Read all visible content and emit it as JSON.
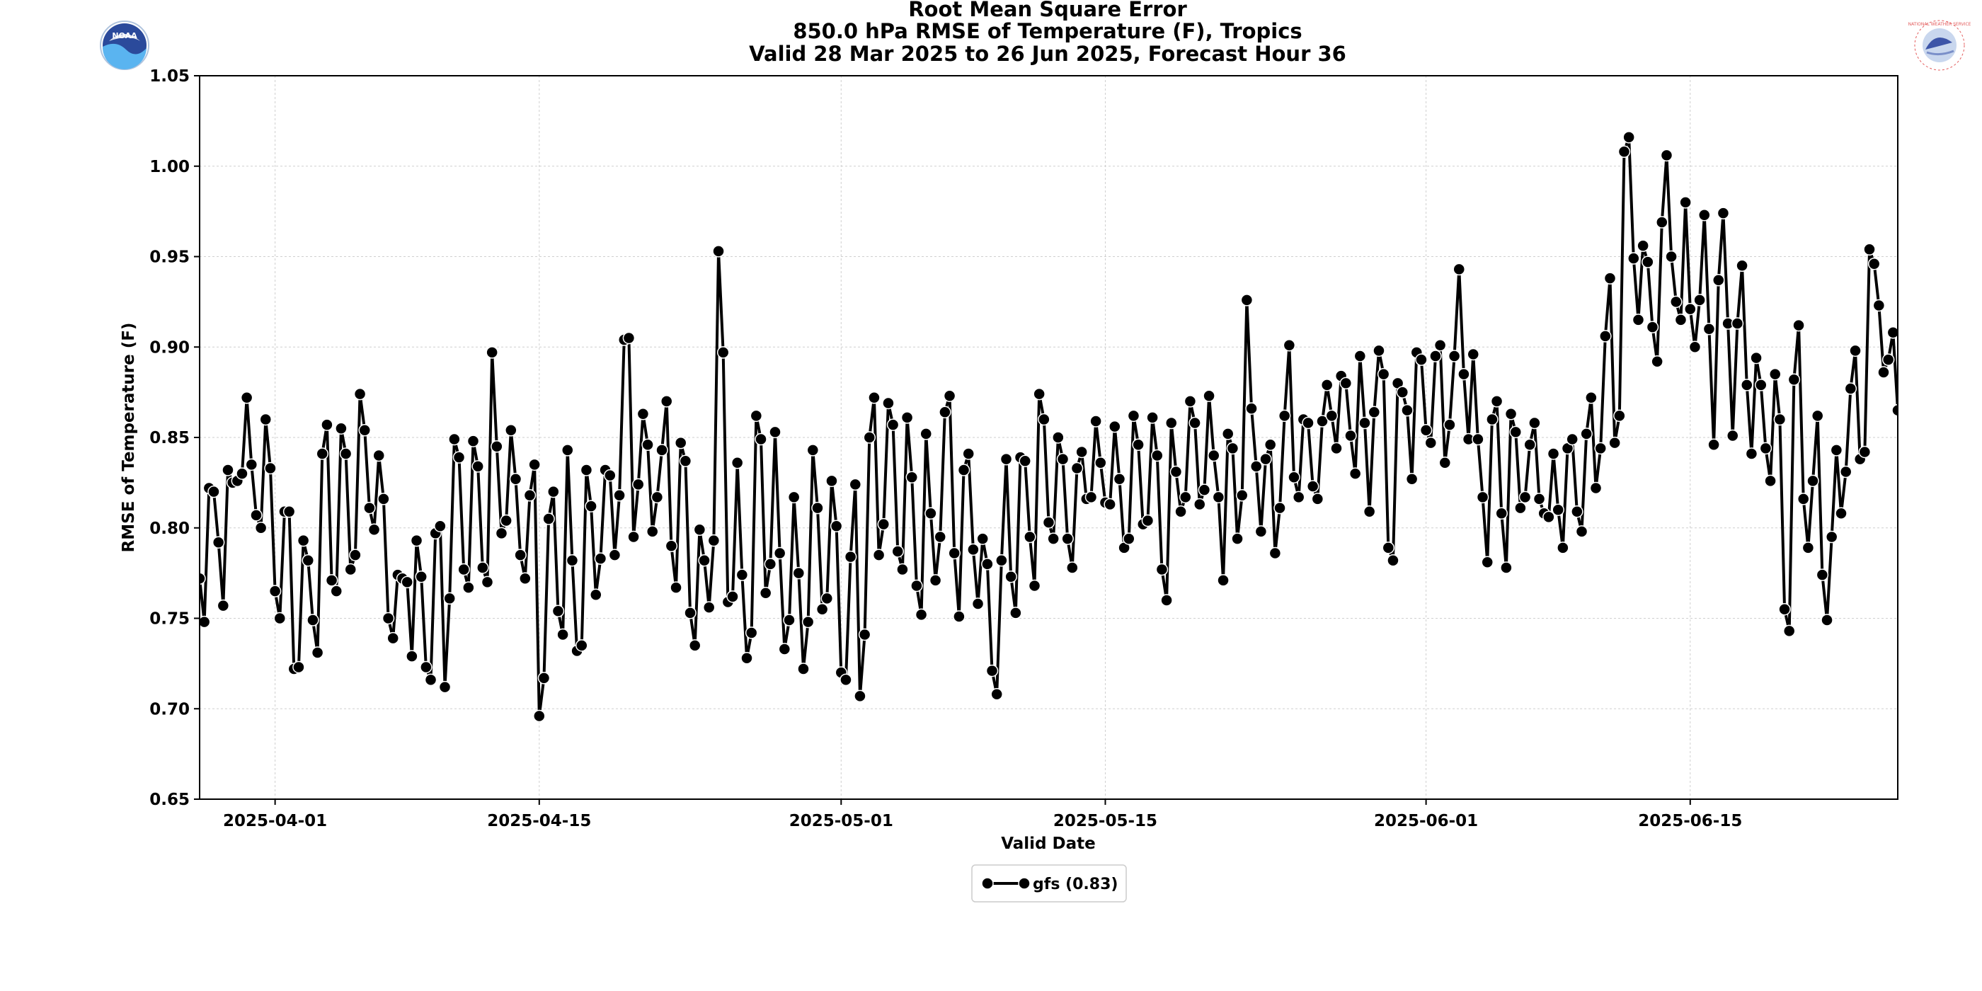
{
  "chart_data": {
    "type": "line",
    "title": [
      "Root Mean Square Error",
      "850.0 hPa RMSE of Temperature (F), Tropics",
      "Valid 28 Mar 2025 to 26 Jun 2025, Forecast Hour 36"
    ],
    "xlabel": "Valid Date",
    "ylabel": "RMSE of Temperature (F)",
    "xlim": [
      "2025-03-28T00:00",
      "2025-06-26T00:00"
    ],
    "ylim": [
      0.65,
      1.05
    ],
    "yticks": [
      "0.65",
      "0.70",
      "0.75",
      "0.80",
      "0.85",
      "0.90",
      "0.95",
      "1.00",
      "1.05"
    ],
    "xticks": [
      "2025-04-01",
      "2025-04-15",
      "2025-05-01",
      "2025-05-15",
      "2025-06-01",
      "2025-06-15"
    ],
    "grid": true,
    "legend_position": "bottom-center",
    "interval_hours": 6,
    "series": [
      {
        "name": "gfs (0.83)",
        "color": "#000000",
        "start": "2025-03-28T00:00",
        "values": [
          0.772,
          0.748,
          0.822,
          0.82,
          0.792,
          0.757,
          0.832,
          0.825,
          0.826,
          0.83,
          0.872,
          0.835,
          0.807,
          0.8,
          0.86,
          0.833,
          0.765,
          0.75,
          0.809,
          0.809,
          0.722,
          0.723,
          0.793,
          0.782,
          0.749,
          0.731,
          0.841,
          0.857,
          0.771,
          0.765,
          0.855,
          0.841,
          0.777,
          0.785,
          0.874,
          0.854,
          0.811,
          0.799,
          0.84,
          0.816,
          0.75,
          0.739,
          0.774,
          0.772,
          0.77,
          0.729,
          0.793,
          0.773,
          0.723,
          0.716,
          0.797,
          0.801,
          0.712,
          0.761,
          0.849,
          0.839,
          0.777,
          0.767,
          0.848,
          0.834,
          0.778,
          0.77,
          0.897,
          0.845,
          0.797,
          0.804,
          0.854,
          0.827,
          0.785,
          0.772,
          0.818,
          0.835,
          0.696,
          0.717,
          0.805,
          0.82,
          0.754,
          0.741,
          0.843,
          0.782,
          0.732,
          0.735,
          0.832,
          0.812,
          0.763,
          0.783,
          0.832,
          0.829,
          0.785,
          0.818,
          0.904,
          0.905,
          0.795,
          0.824,
          0.863,
          0.846,
          0.798,
          0.817,
          0.843,
          0.87,
          0.79,
          0.767,
          0.847,
          0.837,
          0.753,
          0.735,
          0.799,
          0.782,
          0.756,
          0.793,
          0.953,
          0.897,
          0.759,
          0.762,
          0.836,
          0.774,
          0.728,
          0.742,
          0.862,
          0.849,
          0.764,
          0.78,
          0.853,
          0.786,
          0.733,
          0.749,
          0.817,
          0.775,
          0.722,
          0.748,
          0.843,
          0.811,
          0.755,
          0.761,
          0.826,
          0.801,
          0.72,
          0.716,
          0.784,
          0.824,
          0.707,
          0.741,
          0.85,
          0.872,
          0.785,
          0.802,
          0.869,
          0.857,
          0.787,
          0.777,
          0.861,
          0.828,
          0.768,
          0.752,
          0.852,
          0.808,
          0.771,
          0.795,
          0.864,
          0.873,
          0.786,
          0.751,
          0.832,
          0.841,
          0.788,
          0.758,
          0.794,
          0.78,
          0.721,
          0.708,
          0.782,
          0.838,
          0.773,
          0.753,
          0.839,
          0.837,
          0.795,
          0.768,
          0.874,
          0.86,
          0.803,
          0.794,
          0.85,
          0.838,
          0.794,
          0.778,
          0.833,
          0.842,
          0.816,
          0.817,
          0.859,
          0.836,
          0.814,
          0.813,
          0.856,
          0.827,
          0.789,
          0.794,
          0.862,
          0.846,
          0.802,
          0.804,
          0.861,
          0.84,
          0.777,
          0.76,
          0.858,
          0.831,
          0.809,
          0.817,
          0.87,
          0.858,
          0.813,
          0.821,
          0.873,
          0.84,
          0.817,
          0.771,
          0.852,
          0.844,
          0.794,
          0.818,
          0.926,
          0.866,
          0.834,
          0.798,
          0.838,
          0.846,
          0.786,
          0.811,
          0.862,
          0.901,
          0.828,
          0.817,
          0.86,
          0.858,
          0.823,
          0.816,
          0.859,
          0.879,
          0.862,
          0.844,
          0.884,
          0.88,
          0.851,
          0.83,
          0.895,
          0.858,
          0.809,
          0.864,
          0.898,
          0.885,
          0.789,
          0.782,
          0.88,
          0.875,
          0.865,
          0.827,
          0.897,
          0.893,
          0.854,
          0.847,
          0.895,
          0.901,
          0.836,
          0.857,
          0.895,
          0.943,
          0.885,
          0.849,
          0.896,
          0.849,
          0.817,
          0.781,
          0.86,
          0.87,
          0.808,
          0.778,
          0.863,
          0.853,
          0.811,
          0.817,
          0.846,
          0.858,
          0.816,
          0.808,
          0.806,
          0.841,
          0.81,
          0.789,
          0.844,
          0.849,
          0.809,
          0.798,
          0.852,
          0.872,
          0.822,
          0.844,
          0.906,
          0.938,
          0.847,
          0.862,
          1.008,
          1.016,
          0.949,
          0.915,
          0.956,
          0.947,
          0.911,
          0.892,
          0.969,
          1.006,
          0.95,
          0.925,
          0.915,
          0.98,
          0.921,
          0.9,
          0.926,
          0.973,
          0.91,
          0.846,
          0.937,
          0.974,
          0.913,
          0.851,
          0.913,
          0.945,
          0.879,
          0.841,
          0.894,
          0.879,
          0.844,
          0.826,
          0.885,
          0.86,
          0.755,
          0.743,
          0.882,
          0.912,
          0.816,
          0.789,
          0.826,
          0.862,
          0.774,
          0.749,
          0.795,
          0.843,
          0.808,
          0.831,
          0.877,
          0.898,
          0.838,
          0.842,
          0.954,
          0.946,
          0.923,
          0.886,
          0.893,
          0.908,
          0.865
        ]
      }
    ]
  },
  "logos": {
    "left": "noaa-logo",
    "left_text": "NOAA",
    "right": "nws-logo",
    "right_text": "NATIONAL WEATHER SERVICE"
  }
}
